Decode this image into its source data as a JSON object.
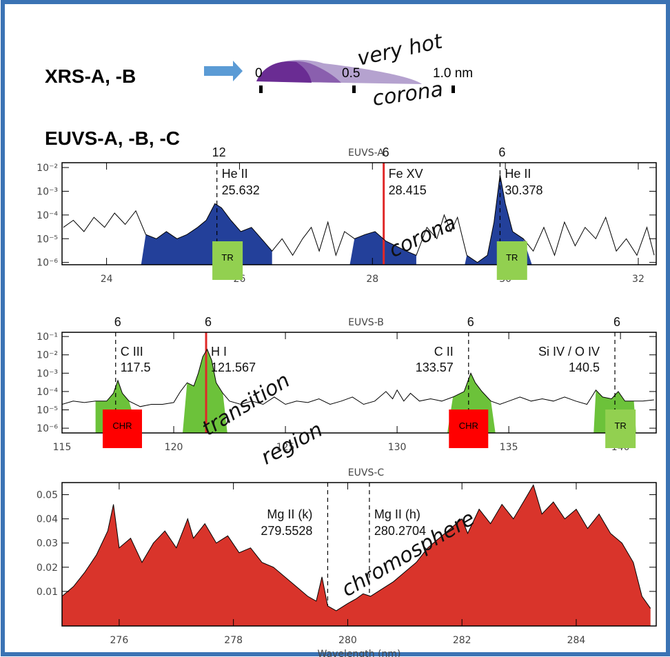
{
  "header": {
    "xrs_label": "XRS-A, -B",
    "xrs_scale": [
      "0",
      "0.5",
      "1.0 nm"
    ],
    "xrs_notes": [
      "very hot",
      "corona"
    ],
    "euvs_label": "EUVS-A, -B, -C"
  },
  "chart_data": [
    {
      "type": "line",
      "title": "EUVS-A",
      "log_y": true,
      "xlim": [
        23.33,
        32.27
      ],
      "xticks": [
        24,
        26,
        28,
        30,
        32
      ],
      "ylim": [
        8e-07,
        0.016
      ],
      "yticks": [
        {
          "value": 1e-06,
          "label": "10⁻⁶"
        },
        {
          "value": 1e-05,
          "label": "10⁻⁵"
        },
        {
          "value": 0.0001,
          "label": "10⁻⁴"
        },
        {
          "value": 0.001,
          "label": "10⁻³"
        },
        {
          "value": 0.01,
          "label": "10⁻²"
        }
      ],
      "series": [
        {
          "color": "#000000",
          "x": [
            23.35,
            23.5,
            23.66,
            23.81,
            23.97,
            24.12,
            24.28,
            24.44,
            24.59,
            24.75,
            24.9,
            25.06,
            25.21,
            25.37,
            25.5,
            25.63,
            25.73,
            25.87,
            26.02,
            26.18,
            26.33,
            26.49,
            26.64,
            26.8,
            26.95,
            27.08,
            27.2,
            27.33,
            27.45,
            27.58,
            27.73,
            27.89,
            28.04,
            28.2,
            28.35,
            28.51,
            28.66,
            28.82,
            28.97,
            29.08,
            29.18,
            29.28,
            29.42,
            29.58,
            29.73,
            29.83,
            29.92,
            30,
            30.11,
            30.27,
            30.42,
            30.58,
            30.74,
            30.89,
            31.05,
            31.2,
            31.36,
            31.51,
            31.67,
            31.82,
            31.98,
            32.13,
            32.24
          ],
          "values": [
            3e-05,
            6e-05,
            2e-05,
            8e-05,
            3e-05,
            0.00012,
            4e-05,
            0.00015,
            1.5e-05,
            1e-05,
            2e-05,
            1e-05,
            1.5e-05,
            3e-05,
            6e-05,
            0.0003,
            0.0002,
            6e-05,
            2e-05,
            3e-05,
            1e-05,
            3e-06,
            1e-05,
            2e-06,
            1e-05,
            3e-05,
            3e-06,
            5e-05,
            2e-06,
            2e-05,
            1e-05,
            1.5e-05,
            2e-05,
            8e-06,
            5e-06,
            3e-06,
            2e-06,
            3e-05,
            1e-05,
            0.0001,
            2e-05,
            8e-05,
            2e-06,
            1e-06,
            2e-06,
            5e-05,
            0.005,
            0.0003,
            2e-05,
            1e-05,
            3e-06,
            3e-05,
            2e-06,
            5e-05,
            5e-06,
            3e-05,
            1e-05,
            8e-05,
            3e-06,
            1e-05,
            2e-06,
            3e-05,
            2e-06
          ]
        }
      ],
      "bands": {
        "color": "#23409a",
        "ranges": [
          [
            24.52,
            26.49
          ],
          [
            27.66,
            28.66
          ],
          [
            29.39,
            30.4
          ]
        ]
      },
      "lines": [
        {
          "name": "He II",
          "wavelength": "25.632",
          "count": 12,
          "x": 25.66,
          "color": "#000000",
          "style": "dashed",
          "label_side": "right"
        },
        {
          "name": "Fe XV",
          "wavelength": "28.415",
          "count": 6,
          "x": 28.17,
          "color": "#e02828",
          "style": "solid",
          "label_side": "right"
        },
        {
          "name": "He II",
          "wavelength": "30.378",
          "count": 6,
          "x": 29.92,
          "color": "#000000",
          "style": "dashed",
          "label_side": "right"
        }
      ],
      "boxes": [
        {
          "label": "TR",
          "x": 25.82,
          "color": "#92d050"
        },
        {
          "label": "TR",
          "x": 30.1,
          "color": "#92d050"
        }
      ],
      "notes": [
        "corona"
      ]
    },
    {
      "type": "line",
      "title": "EUVS-B",
      "log_y": true,
      "xlim": [
        115,
        141.6
      ],
      "xticks": [
        115,
        120,
        125,
        130,
        135,
        140
      ],
      "ylim": [
        5.5e-07,
        0.17
      ],
      "yticks": [
        {
          "value": 1e-06,
          "label": "10⁻⁶"
        },
        {
          "value": 1e-05,
          "label": "10⁻⁵"
        },
        {
          "value": 0.0001,
          "label": "10⁻⁴"
        },
        {
          "value": 0.001,
          "label": "10⁻³"
        },
        {
          "value": 0.01,
          "label": "10⁻²"
        },
        {
          "value": 0.1,
          "label": "10⁻¹"
        }
      ],
      "series": [
        {
          "color": "#000000",
          "x": [
            115.0,
            115.5,
            116.0,
            116.5,
            117.0,
            117.3,
            117.5,
            117.7,
            118.0,
            118.5,
            119.0,
            119.5,
            120.0,
            120.3,
            120.6,
            120.9,
            121.1,
            121.3,
            121.5,
            121.7,
            121.9,
            122.2,
            122.5,
            123.0,
            123.5,
            124.0,
            124.5,
            125.0,
            125.5,
            126.0,
            126.5,
            127.0,
            127.5,
            128.0,
            128.5,
            129.0,
            129.5,
            129.8,
            130.0,
            130.3,
            130.6,
            131.0,
            131.5,
            132.0,
            132.5,
            133.0,
            133.3,
            133.5,
            133.8,
            134.2,
            134.6,
            135.0,
            135.5,
            136.0,
            136.5,
            137.0,
            137.5,
            138.0,
            138.5,
            138.9,
            139.2,
            139.6,
            139.9,
            140.2,
            140.6,
            141.0,
            141.5
          ],
          "values": [
            2e-05,
            3e-05,
            2.5e-05,
            3e-05,
            3e-05,
            8e-05,
            0.0004,
            8e-05,
            3e-05,
            1.5e-05,
            2e-05,
            2e-05,
            2.5e-05,
            0.0001,
            0.0003,
            0.0002,
            0.001,
            0.008,
            0.02,
            0.005,
            0.0003,
            8e-05,
            3e-05,
            2e-05,
            3e-05,
            2e-05,
            5e-05,
            2e-05,
            3e-05,
            2.5e-05,
            4e-05,
            2e-05,
            3e-05,
            5e-05,
            2e-05,
            3e-05,
            0.0001,
            4e-05,
            0.00012,
            3e-05,
            8e-05,
            3e-05,
            4e-05,
            3e-05,
            5e-05,
            0.0001,
            0.001,
            0.0003,
            0.0001,
            3e-05,
            2e-05,
            3e-05,
            5e-05,
            3e-05,
            4e-05,
            3e-05,
            5e-05,
            3e-05,
            2e-05,
            0.00012,
            5e-05,
            4e-05,
            0.0001,
            3e-05,
            3e-05,
            3e-05,
            3.5e-05
          ]
        }
      ],
      "bands": {
        "color": "#6cc23a",
        "ranges": [
          [
            116.5,
            118.4
          ],
          [
            120.4,
            122.4
          ],
          [
            132.25,
            134.4
          ],
          [
            138.8,
            140.7
          ]
        ]
      },
      "lines": [
        {
          "name": "C III",
          "wavelength": "117.5",
          "count": 6,
          "x": 117.4,
          "color": "#000000",
          "style": "dashed",
          "label_side": "right"
        },
        {
          "name": "H I",
          "wavelength": "121.567",
          "count": 6,
          "x": 121.45,
          "color": "#e02828",
          "style": "solid",
          "label_side": "right"
        },
        {
          "name": "C II",
          "wavelength": "133.57",
          "count": 6,
          "x": 133.2,
          "color": "#000000",
          "style": "dashed",
          "label_side": "left"
        },
        {
          "name": "Si IV / O IV",
          "wavelength": "140.5",
          "count": 6,
          "x": 139.75,
          "color": "#000000",
          "style": "dashed",
          "label_side": "left"
        }
      ],
      "boxes": [
        {
          "label": "CHR",
          "x": 117.7,
          "color": "#ff0000"
        },
        {
          "label": "CHR",
          "x": 133.2,
          "color": "#ff0000"
        },
        {
          "label": "TR",
          "x": 140.0,
          "color": "#92d050"
        }
      ],
      "notes": [
        "transition",
        "region"
      ]
    },
    {
      "type": "area",
      "title": "EUVS-C",
      "log_y": false,
      "x_label": "Wavelength (nm)",
      "xlim": [
        275,
        285.4
      ],
      "xticks": [
        276,
        278,
        280,
        282,
        284
      ],
      "ylim": [
        -0.0043,
        0.055
      ],
      "yticks": [
        0.01,
        0.02,
        0.03,
        0.04,
        0.05
      ],
      "series": [
        {
          "color": "#d9342b",
          "x": [
            275.0,
            275.2,
            275.4,
            275.6,
            275.8,
            275.9,
            276.0,
            276.2,
            276.4,
            276.6,
            276.8,
            277.0,
            277.2,
            277.3,
            277.5,
            277.7,
            277.9,
            278.1,
            278.3,
            278.5,
            278.7,
            278.9,
            279.1,
            279.3,
            279.45,
            279.55,
            279.65,
            279.8,
            280.0,
            280.15,
            280.27,
            280.4,
            280.6,
            280.8,
            281.0,
            281.2,
            281.4,
            281.6,
            281.8,
            282.0,
            282.1,
            282.3,
            282.5,
            282.7,
            282.9,
            283.1,
            283.25,
            283.4,
            283.6,
            283.8,
            284.0,
            284.2,
            284.4,
            284.6,
            284.8,
            285.0,
            285.15,
            285.3
          ],
          "values": [
            0.008,
            0.012,
            0.018,
            0.025,
            0.035,
            0.046,
            0.028,
            0.032,
            0.022,
            0.03,
            0.035,
            0.028,
            0.04,
            0.032,
            0.038,
            0.03,
            0.033,
            0.026,
            0.028,
            0.022,
            0.02,
            0.016,
            0.012,
            0.008,
            0.006,
            0.016,
            0.004,
            0.002,
            0.005,
            0.007,
            0.009,
            0.008,
            0.011,
            0.014,
            0.018,
            0.022,
            0.028,
            0.032,
            0.036,
            0.04,
            0.034,
            0.044,
            0.038,
            0.046,
            0.04,
            0.048,
            0.054,
            0.042,
            0.047,
            0.04,
            0.044,
            0.036,
            0.042,
            0.034,
            0.03,
            0.022,
            0.008,
            0.003
          ]
        }
      ],
      "lines": [
        {
          "name": "Mg II (k)",
          "wavelength": "279.5528",
          "x": 279.65,
          "color": "#000000",
          "style": "dashed",
          "label_side": "left"
        },
        {
          "name": "Mg II (h)",
          "wavelength": "280.2704",
          "x": 280.38,
          "color": "#000000",
          "style": "dashed",
          "label_side": "right"
        }
      ],
      "notes": [
        "chromosphere"
      ]
    }
  ]
}
